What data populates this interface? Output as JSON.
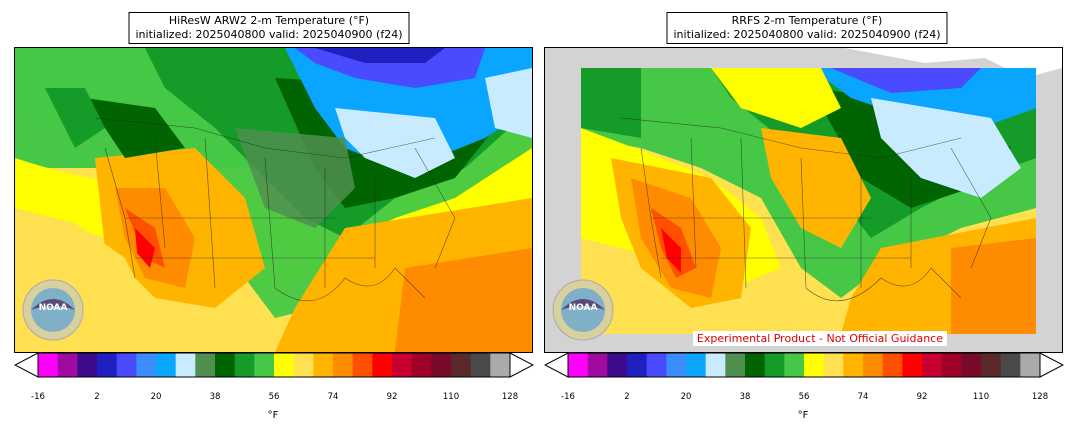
{
  "panels": [
    {
      "title_line1": "HiResW ARW2 2-m Temperature (°F)",
      "title_line2": "initialized: 2025040800 valid: 2025040900 (f24)",
      "logo_text": "NOAA",
      "experimental_label": ""
    },
    {
      "title_line1": "RRFS 2-m Temperature (°F)",
      "title_line2": "initialized: 2025040800 valid: 2025040900 (f24)",
      "logo_text": "NOAA",
      "experimental_label": "Experimental Product - Not Official Guidance"
    }
  ],
  "colorbar": {
    "unit": "°F",
    "tick_labels": [
      "-16",
      "2",
      "20",
      "38",
      "56",
      "74",
      "92",
      "110",
      "128"
    ],
    "colors": [
      "#ff00ff",
      "#a10aa1",
      "#3c0a8c",
      "#2020c0",
      "#4a4aff",
      "#3a8cff",
      "#0aa5ff",
      "#c8ebff",
      "#4f8f4f",
      "#006400",
      "#149b28",
      "#46c846",
      "#ffff00",
      "#ffe050",
      "#ffb400",
      "#ff8c00",
      "#ff5000",
      "#ff0000",
      "#c80032",
      "#a00028",
      "#7a0a2a",
      "#5a2a2a",
      "#4a4a4a",
      "#aaaaaa"
    ]
  }
}
